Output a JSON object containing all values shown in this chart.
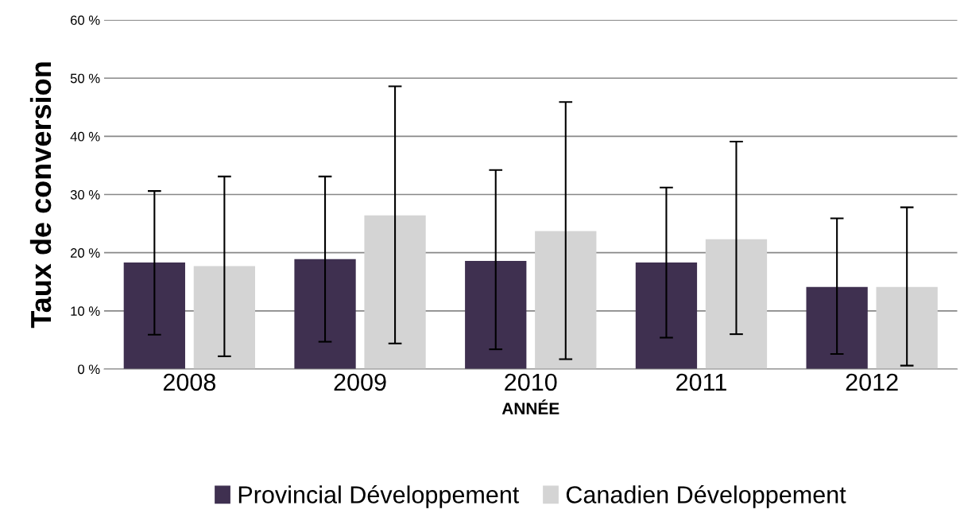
{
  "chart_data": {
    "type": "bar",
    "xlabel": "ANNÉE",
    "ylabel": "Taux de conversion",
    "categories": [
      "2008",
      "2009",
      "2010",
      "2011",
      "2012"
    ],
    "series": [
      {
        "name": "Provincial Développement",
        "color": "#3f3050",
        "values": [
          18.3,
          18.9,
          18.6,
          18.3,
          14.1
        ],
        "errors": [
          [
            5.9,
            30.6
          ],
          [
            4.7,
            33.1
          ],
          [
            3.4,
            34.2
          ],
          [
            5.4,
            31.2
          ],
          [
            2.6,
            25.9
          ]
        ]
      },
      {
        "name": "Canadien Développement",
        "color": "#d4d4d4",
        "values": [
          17.7,
          26.4,
          23.7,
          22.3,
          14.1
        ],
        "errors": [
          [
            2.2,
            33.1
          ],
          [
            4.4,
            48.6
          ],
          [
            1.7,
            45.9
          ],
          [
            6.0,
            39.1
          ],
          [
            0.6,
            27.8
          ]
        ]
      }
    ],
    "ylim": [
      0,
      60
    ],
    "yticks": [
      {
        "value": 0,
        "label": "0 %"
      },
      {
        "value": 10,
        "label": "10 %"
      },
      {
        "value": 20,
        "label": "20 %"
      },
      {
        "value": 30,
        "label": "30 %"
      },
      {
        "value": 40,
        "label": "40 %"
      },
      {
        "value": 50,
        "label": "50 %"
      },
      {
        "value": 60,
        "label": "60 %"
      }
    ],
    "grid": "y",
    "legend": "bottom"
  }
}
